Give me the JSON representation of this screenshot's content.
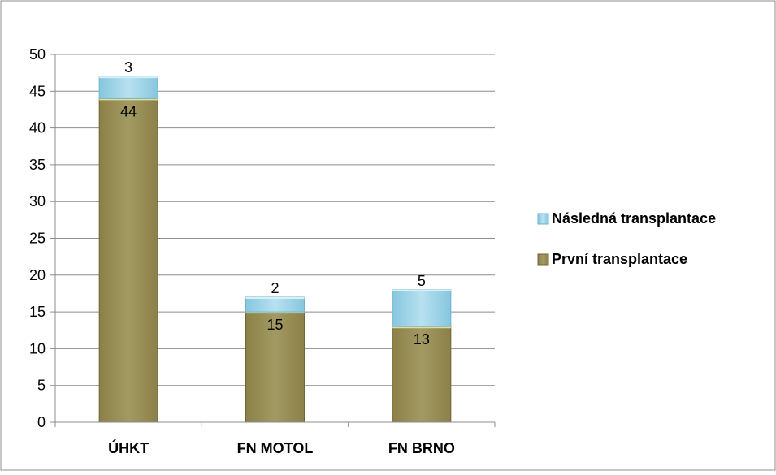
{
  "chart_data": {
    "type": "bar",
    "stacked": true,
    "title": "",
    "xlabel": "",
    "ylabel": "",
    "categories": [
      "ÚHKT",
      "FN MOTOL",
      "FN BRNO"
    ],
    "series": [
      {
        "name": "První transplantace",
        "values": [
          44,
          15,
          13
        ],
        "color": "#8B8150"
      },
      {
        "name": "Následná transplantace",
        "values": [
          3,
          2,
          5
        ],
        "color": "#96CFE3"
      }
    ],
    "ylim": [
      0,
      50
    ],
    "yticks": [
      0,
      5,
      10,
      15,
      20,
      25,
      30,
      35,
      40,
      45,
      50
    ],
    "grid": true,
    "legend_position": "right",
    "legend_order": [
      "Následná transplantace",
      "První transplantace"
    ]
  }
}
